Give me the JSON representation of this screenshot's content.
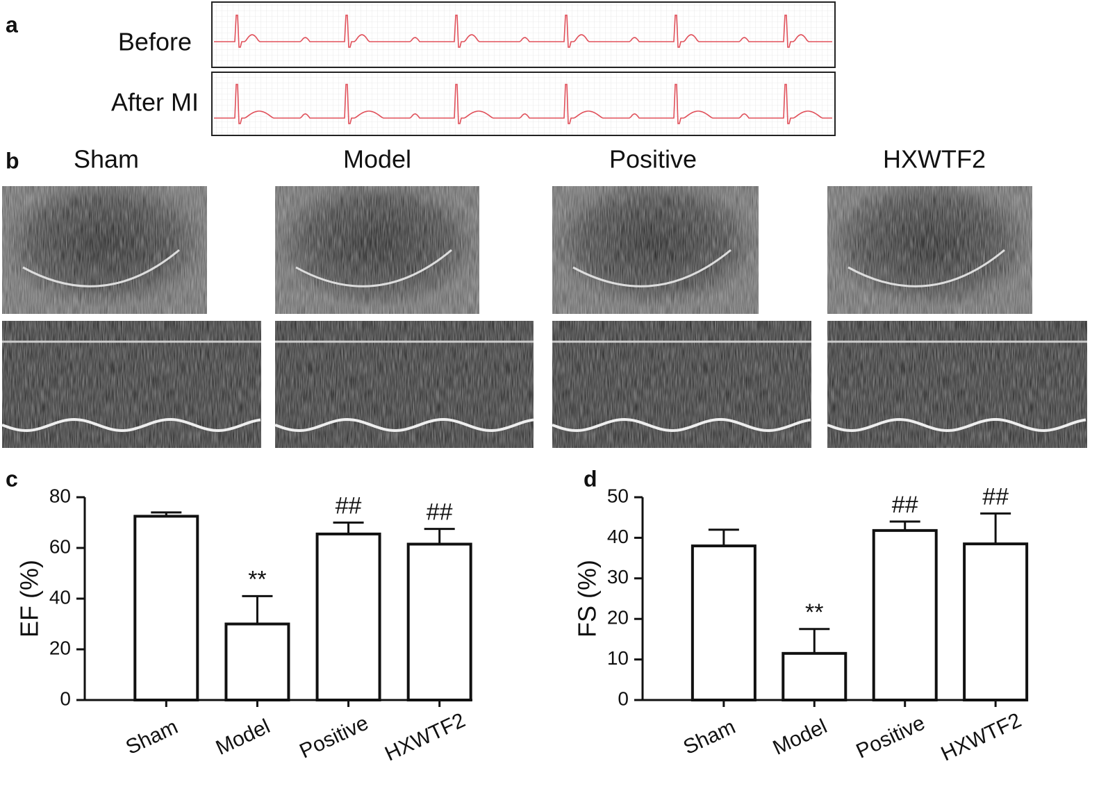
{
  "panel_labels": {
    "a": "a",
    "b": "b"
  },
  "ecg": {
    "rows": [
      "Before",
      "After MI"
    ]
  },
  "echo": {
    "columns": [
      "Sham",
      "Model",
      "Positive",
      "HXWTF2"
    ]
  },
  "chart_data": [
    {
      "type": "bar",
      "panel_label": "c",
      "y_label": "EF (%)",
      "categories": [
        "Sham",
        "Model",
        "Positive",
        "HXWTF2"
      ],
      "values": [
        72.5,
        30,
        65.5,
        61.5
      ],
      "errors": [
        1.5,
        11,
        4.5,
        6
      ],
      "annotations": [
        null,
        "**",
        "##",
        "##"
      ],
      "ylim": [
        0,
        80
      ],
      "yticks": [
        0,
        20,
        40,
        60,
        80
      ],
      "color": "#ffffff"
    },
    {
      "type": "bar",
      "panel_label": "d",
      "y_label": "FS (%)",
      "categories": [
        "Sham",
        "Model",
        "Positive",
        "HXWTF2"
      ],
      "values": [
        38,
        11.5,
        41.8,
        38.5
      ],
      "errors": [
        4,
        6,
        2.2,
        7.5
      ],
      "annotations": [
        null,
        "**",
        "##",
        "##"
      ],
      "ylim": [
        0,
        50
      ],
      "yticks": [
        0,
        10,
        20,
        30,
        40,
        50
      ],
      "color": "#ffffff"
    }
  ]
}
